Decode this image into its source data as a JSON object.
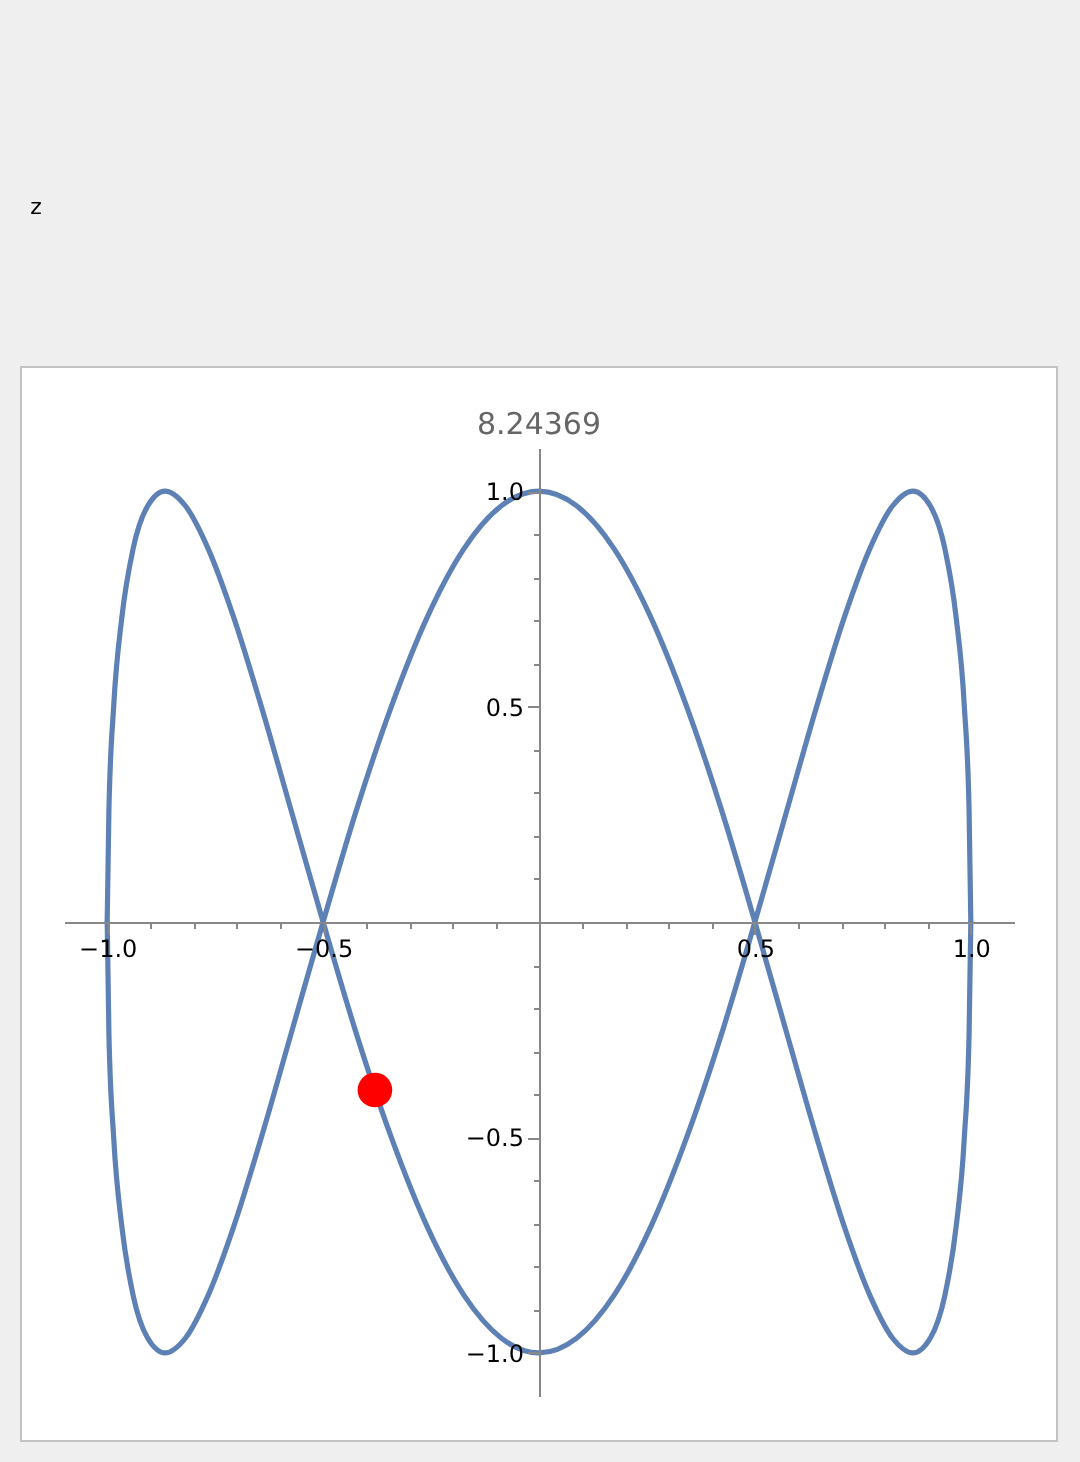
{
  "chart_data": {
    "type": "line",
    "title": "8.24369",
    "annotations": [
      "z"
    ],
    "xlim": [
      -1.1,
      1.1
    ],
    "ylim": [
      -1.1,
      1.1
    ],
    "xticks": [
      {
        "value": -1,
        "label": "−1.0"
      },
      {
        "value": -0.9,
        "label": null
      },
      {
        "value": -0.8,
        "label": null
      },
      {
        "value": -0.7,
        "label": null
      },
      {
        "value": -0.6,
        "label": null
      },
      {
        "value": -0.5,
        "label": "−0.5"
      },
      {
        "value": -0.4,
        "label": null
      },
      {
        "value": -0.3,
        "label": null
      },
      {
        "value": -0.2,
        "label": null
      },
      {
        "value": -0.1,
        "label": null
      },
      {
        "value": 0.1,
        "label": null
      },
      {
        "value": 0.2,
        "label": null
      },
      {
        "value": 0.3,
        "label": null
      },
      {
        "value": 0.4,
        "label": null
      },
      0.5,
      {
        "value": 0.6,
        "label": null
      },
      {
        "value": 0.7,
        "label": null
      },
      {
        "value": 0.8,
        "label": null
      },
      {
        "value": 0.9,
        "label": null
      },
      {
        "value": 1,
        "label": "1.0"
      }
    ],
    "yticks": [
      {
        "value": -1,
        "label": "−1.0"
      },
      {
        "value": -0.9,
        "label": null
      },
      {
        "value": -0.8,
        "label": null
      },
      {
        "value": -0.7,
        "label": null
      },
      {
        "value": -0.6,
        "label": null
      },
      {
        "value": -0.5,
        "label": "−0.5"
      },
      {
        "value": -0.4,
        "label": null
      },
      {
        "value": -0.3,
        "label": null
      },
      {
        "value": -0.2,
        "label": null
      },
      {
        "value": -0.1,
        "label": null
      },
      {
        "value": 0.1,
        "label": null
      },
      {
        "value": 0.2,
        "label": null
      },
      {
        "value": 0.3,
        "label": null
      },
      {
        "value": 0.4,
        "label": null
      },
      0.5,
      {
        "value": 0.6,
        "label": null
      },
      {
        "value": 0.7,
        "label": null
      },
      {
        "value": 0.8,
        "label": null
      },
      {
        "value": 0.9,
        "label": null
      },
      {
        "value": 1,
        "label": "1.0"
      }
    ],
    "x": [
      -1,
      -0.996,
      -0.985,
      -0.966,
      -0.94,
      -0.906,
      -0.866,
      -0.819,
      -0.766,
      -0.707,
      -0.643,
      -0.574,
      -0.5,
      -0.423,
      -0.342,
      -0.259,
      -0.174,
      -0.087,
      0,
      0.087,
      0.174,
      0.259,
      0.342,
      0.423,
      0.5,
      0.574,
      0.643,
      0.707,
      0.766,
      0.819,
      0.866,
      0.906,
      0.94,
      0.966,
      0.985,
      0.996,
      1
    ],
    "series": [
      {
        "color": "#5e81b5",
        "line_style": "solid",
        "values": [
          0,
          0.259,
          0.5,
          0.707,
          0.866,
          0.966,
          1,
          0.966,
          0.866,
          0.707,
          0.5,
          0.259,
          0,
          -0.259,
          -0.5,
          -0.707,
          -0.866,
          -0.966,
          -1,
          -0.966,
          -0.866,
          -0.707,
          -0.5,
          -0.259,
          0,
          0.259,
          0.5,
          0.707,
          0.866,
          0.966,
          1,
          0.966,
          0.866,
          0.707,
          0.5,
          0.259,
          0
        ]
      },
      {
        "color": "#5e81b5",
        "line_style": "solid",
        "values": [
          0,
          -0.259,
          -0.5,
          -0.707,
          -0.866,
          -0.966,
          -1,
          -0.966,
          -0.866,
          -0.707,
          -0.5,
          -0.259,
          0,
          0.259,
          0.5,
          0.707,
          0.866,
          0.966,
          1,
          0.966,
          0.866,
          0.707,
          0.5,
          0.259,
          0,
          -0.259,
          -0.5,
          -0.707,
          -0.866,
          -0.966,
          -1,
          -0.966,
          -0.866,
          -0.707,
          -0.5,
          -0.259,
          0
        ]
      },
      {
        "type": "scatter",
        "color": "#ff0000",
        "marker": "circle",
        "x": [
          -0.38
        ],
        "values": [
          -0.39
        ]
      }
    ]
  }
}
